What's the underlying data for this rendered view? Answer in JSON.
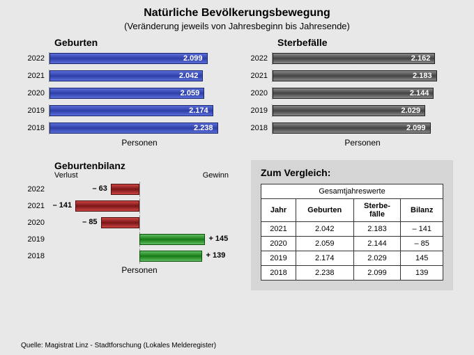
{
  "title": "Natürliche Bevölkerungsbewegung",
  "subtitle": "(Veränderung jeweils von Jahresbeginn bis Jahresende)",
  "persons_label": "Personen",
  "births": {
    "title": "Geburten",
    "max": 2400,
    "color": "blue",
    "rows": [
      {
        "year": "2022",
        "value": 2099,
        "label": "2.099"
      },
      {
        "year": "2021",
        "value": 2042,
        "label": "2.042"
      },
      {
        "year": "2020",
        "value": 2059,
        "label": "2.059"
      },
      {
        "year": "2019",
        "value": 2174,
        "label": "2.174"
      },
      {
        "year": "2018",
        "value": 2238,
        "label": "2.238"
      }
    ]
  },
  "deaths": {
    "title": "Sterbefälle",
    "max": 2400,
    "color": "grey",
    "rows": [
      {
        "year": "2022",
        "value": 2162,
        "label": "2.162"
      },
      {
        "year": "2021",
        "value": 2183,
        "label": "2.183"
      },
      {
        "year": "2020",
        "value": 2144,
        "label": "2.144"
      },
      {
        "year": "2019",
        "value": 2029,
        "label": "2.029"
      },
      {
        "year": "2018",
        "value": 2099,
        "label": "2.099"
      }
    ]
  },
  "balance": {
    "title": "Geburtenbilanz",
    "loss_label": "Verlust",
    "gain_label": "Gewinn",
    "half_range": 200,
    "rows": [
      {
        "year": "2022",
        "value": -63,
        "label": "– 63"
      },
      {
        "year": "2021",
        "value": -141,
        "label": "– 141"
      },
      {
        "year": "2020",
        "value": -85,
        "label": "– 85"
      },
      {
        "year": "2019",
        "value": 145,
        "label": "+ 145"
      },
      {
        "year": "2018",
        "value": 139,
        "label": "+ 139"
      }
    ]
  },
  "compare": {
    "heading": "Zum Vergleich:",
    "table_title": "Gesamtjahreswerte",
    "cols": [
      "Jahr",
      "Geburten",
      "Sterbe-\nfälle",
      "Bilanz"
    ],
    "rows": [
      [
        "2021",
        "2.042",
        "2.183",
        "– 141"
      ],
      [
        "2020",
        "2.059",
        "2.144",
        "– 85"
      ],
      [
        "2019",
        "2.174",
        "2.029",
        "145"
      ],
      [
        "2018",
        "2.238",
        "2.099",
        "139"
      ]
    ]
  },
  "source": "Quelle: Magistrat Linz - Stadtforschung (Lokales Melderegister)"
}
